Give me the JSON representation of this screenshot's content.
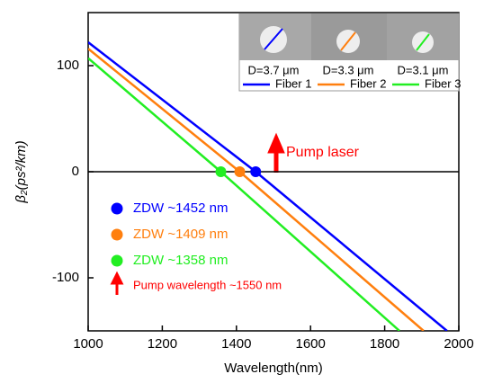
{
  "chart_data": {
    "type": "line",
    "x_label": "Wavelength(nm)",
    "y_label": "β₂(ps²/km)",
    "xlim": [
      1000,
      2000
    ],
    "xticks": [
      1000,
      1200,
      1400,
      1600,
      1800,
      2000
    ],
    "ylim": [
      -150,
      150
    ],
    "yticks": [
      -100,
      0,
      100
    ],
    "series": [
      {
        "name": "Fiber 1",
        "color": "#0000ff",
        "diameter": "D=3.7 μm",
        "x": [
          1000,
          1452,
          1968
        ],
        "values": [
          122,
          0,
          -150
        ]
      },
      {
        "name": "Fiber 2",
        "color": "#ff7f0e",
        "diameter": "D=3.3 μm",
        "x": [
          1000,
          1409,
          1905
        ],
        "values": [
          116,
          0,
          -150
        ]
      },
      {
        "name": "Fiber 3",
        "color": "#22ee22",
        "diameter": "D=3.1 μm",
        "x": [
          1000,
          1358,
          1840
        ],
        "values": [
          107,
          0,
          -150
        ]
      }
    ],
    "zdw_points": [
      {
        "label": "ZDW ~1452 nm",
        "color": "#0000ff",
        "x": 1452,
        "y": 0
      },
      {
        "label": "ZDW ~1409 nm",
        "color": "#ff7f0e",
        "x": 1409,
        "y": 0
      },
      {
        "label": "ZDW ~1358 nm",
        "color": "#22ee22",
        "x": 1358,
        "y": 0
      }
    ],
    "annotations": {
      "pump_laser": "Pump laser",
      "pump_wavelength": "Pump wavelength ~1550 nm"
    }
  }
}
